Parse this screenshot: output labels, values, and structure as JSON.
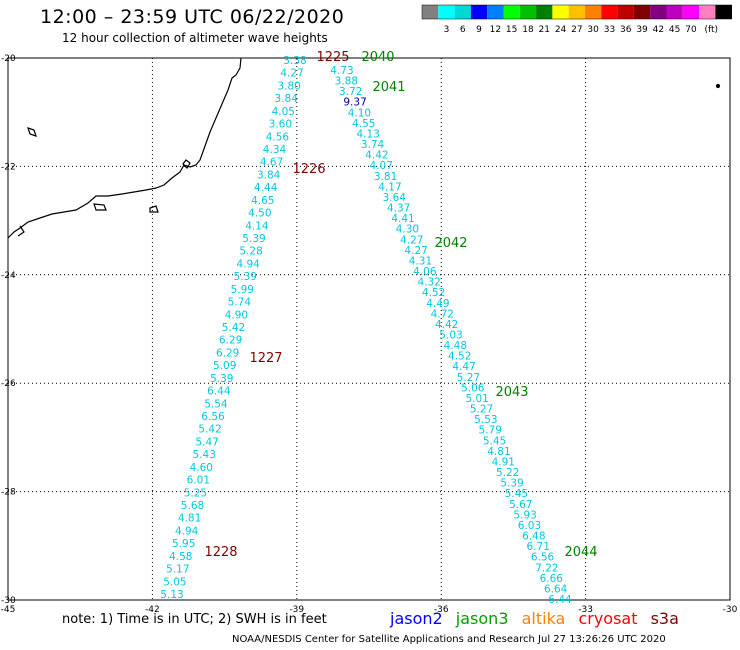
{
  "title": "12:00 – 23:59 UTC 06/22/2020",
  "subtitle": "12 hour collection of altimeter wave heights",
  "colorbar": {
    "colors": [
      "#808080",
      "#00ffff",
      "#00d8d8",
      "#0000ff",
      "#0080ff",
      "#00ff00",
      "#00c000",
      "#008000",
      "#ffff00",
      "#ffc000",
      "#ff8000",
      "#ff0000",
      "#c00000",
      "#800000",
      "#800080",
      "#c000c0",
      "#ff00ff",
      "#ff80c0",
      "#000000"
    ],
    "labels": [
      "3",
      "6",
      "9",
      "12",
      "15",
      "18",
      "21",
      "24",
      "27",
      "30",
      "33",
      "36",
      "39",
      "42",
      "45",
      "70",
      "(ft)"
    ]
  },
  "map": {
    "lon_ticks": [
      "-45",
      "-42",
      "-39",
      "-36",
      "-33",
      "-30"
    ],
    "lat_ticks": [
      "-20",
      "-22",
      "-24",
      "-26",
      "-28",
      "-30"
    ],
    "lon_range": [
      -45,
      -30
    ],
    "lat_range": [
      -30,
      -20
    ]
  },
  "tracks": [
    {
      "name": "west-track",
      "values": [
        "3.38",
        "4.27",
        "3.80",
        "3.84",
        "4.05",
        "3.60",
        "4.56",
        "4.34",
        "4.67",
        "3.84",
        "4.44",
        "4.65",
        "4.50",
        "4.14",
        "5.39",
        "5.28",
        "4.94",
        "5.39",
        "5.99",
        "5.74",
        "4.90",
        "5.42",
        "6.29",
        "6.29",
        "5.09",
        "5.39",
        "6.44",
        "5.54",
        "6.56",
        "5.42",
        "5.47",
        "5.43",
        "4.60",
        "6.01",
        "5.25",
        "5.68",
        "4.81",
        "4.94",
        "5.95",
        "4.58",
        "5.17",
        "5.05",
        "5.13"
      ]
    },
    {
      "name": "east-track",
      "values": [
        "4.73",
        "3.88",
        "3.72",
        "9.37",
        "4.10",
        "4.55",
        "4.13",
        "3.74",
        "4.42",
        "4.07",
        "3.81",
        "4.17",
        "3.64",
        "4.37",
        "4.41",
        "4.30",
        "4.27",
        "4.27",
        "4.31",
        "4.06",
        "4.32",
        "4.52",
        "4.49",
        "4.72",
        "4.42",
        "5.03",
        "4.48",
        "4.52",
        "4.47",
        "5.27",
        "5.06",
        "5.01",
        "5.27",
        "5.53",
        "5.79",
        "5.45",
        "4.81",
        "4.91",
        "5.22",
        "5.39",
        "5.45",
        "5.67",
        "5.93",
        "6.03",
        "6.48",
        "6.71",
        "6.56",
        "7.22",
        "6.66",
        "6.64",
        "6.44"
      ]
    }
  ],
  "time_labels_west": [
    "1225",
    "1226",
    "1227",
    "1228"
  ],
  "time_labels_east": [
    "2040",
    "2041",
    "2042",
    "2043",
    "2044"
  ],
  "note": "note: 1) Time is in UTC; 2) SWH is in feet",
  "satellites": [
    {
      "name": "jason2",
      "color": "#0000ff"
    },
    {
      "name": "jason3",
      "color": "#00a000"
    },
    {
      "name": "altika",
      "color": "#ff8000"
    },
    {
      "name": "cryosat",
      "color": "#ff0000"
    },
    {
      "name": "s3a",
      "color": "#800000"
    }
  ],
  "credit": "NOAA/NESDIS Center for Satellite Applications and Research     Jul 27 13:26:26 UTC 2020"
}
